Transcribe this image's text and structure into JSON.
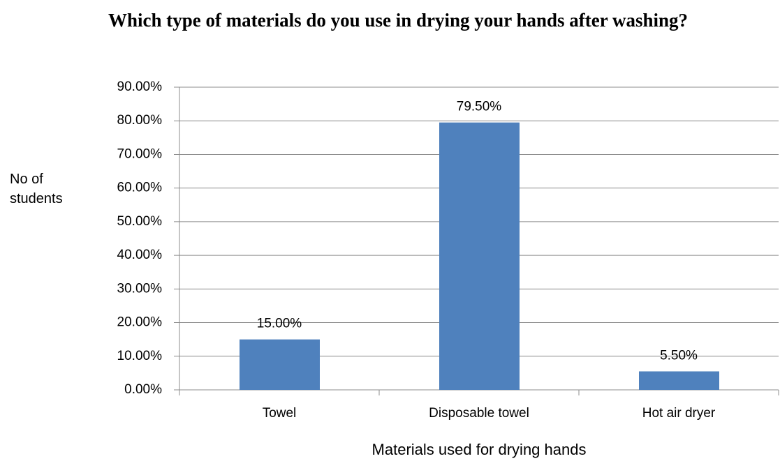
{
  "chart_data": {
    "type": "bar",
    "title": "Which type of materials do you use in drying your hands after washing?",
    "x_label": "Materials used for drying hands",
    "y_label": "No of students",
    "categories": [
      "Towel",
      "Disposable towel",
      "Hot air dryer"
    ],
    "values": [
      15,
      79.5,
      5.5
    ],
    "value_labels": [
      "15.00%",
      "79.50%",
      "5.50%"
    ],
    "color": "#4f81bd",
    "ylim": [
      0,
      90
    ],
    "yticks": [
      {
        "value": 0,
        "label": "0.00%"
      },
      {
        "value": 10,
        "label": "10.00%"
      },
      {
        "value": 20,
        "label": "20.00%"
      },
      {
        "value": 30,
        "label": "30.00%"
      },
      {
        "value": 40,
        "label": "40.00%"
      },
      {
        "value": 50,
        "label": "50.00%"
      },
      {
        "value": 60,
        "label": "60.00%"
      },
      {
        "value": 70,
        "label": "70.00%"
      },
      {
        "value": 80,
        "label": "80.00%"
      },
      {
        "value": 90,
        "label": "90.00%"
      }
    ],
    "grid": true
  }
}
